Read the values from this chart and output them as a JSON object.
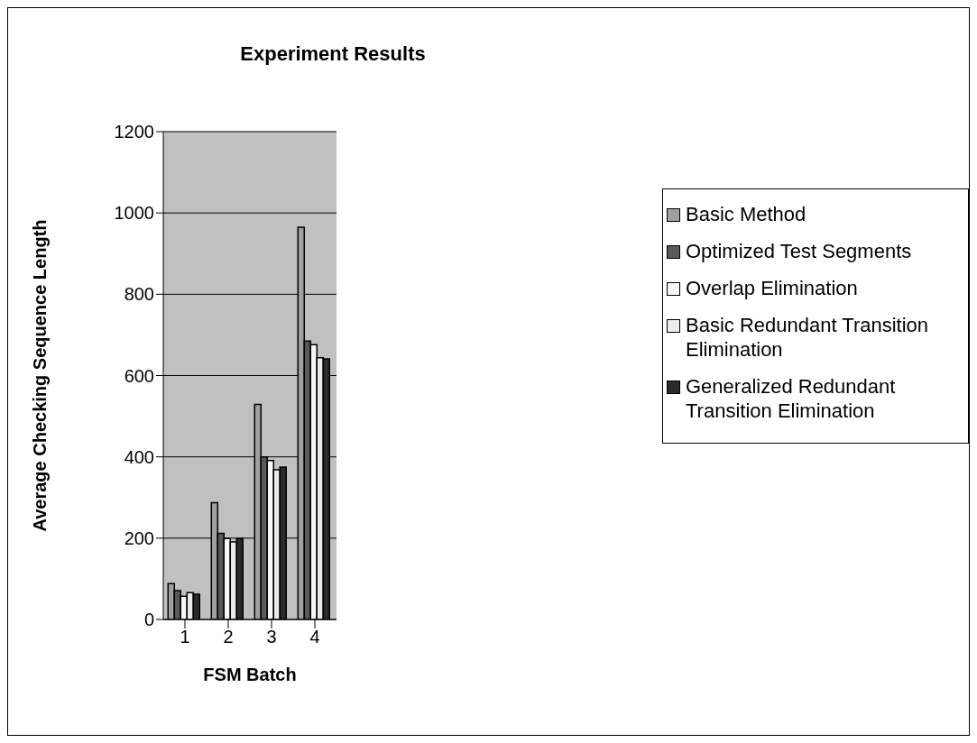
{
  "chart_data": {
    "type": "bar",
    "title": "Experiment Results",
    "xlabel": "FSM Batch",
    "ylabel": "Average Checking Sequence Length",
    "categories": [
      "1",
      "2",
      "3",
      "4"
    ],
    "series": [
      {
        "name": "Basic Method",
        "color": "#a0a0a0",
        "values": [
          88,
          287,
          529,
          965
        ]
      },
      {
        "name": "Optimized Test Segments",
        "color": "#5a5a5a",
        "values": [
          71,
          212,
          400,
          685
        ]
      },
      {
        "name": "Overlap Elimination",
        "color": "#f8f8f8",
        "values": [
          57,
          199,
          391,
          676
        ]
      },
      {
        "name": "Basic Redundant Transition Elimination",
        "color": "#ececec",
        "values": [
          66,
          191,
          368,
          644
        ]
      },
      {
        "name": "Generalized Redundant Transition Elimination",
        "color": "#2a2a2a",
        "values": [
          62,
          199,
          375,
          641
        ]
      }
    ],
    "ylim": [
      0,
      1200
    ],
    "yticks": [
      0,
      200,
      400,
      600,
      800,
      1000,
      1200
    ],
    "grid": "y",
    "legend": "right"
  }
}
